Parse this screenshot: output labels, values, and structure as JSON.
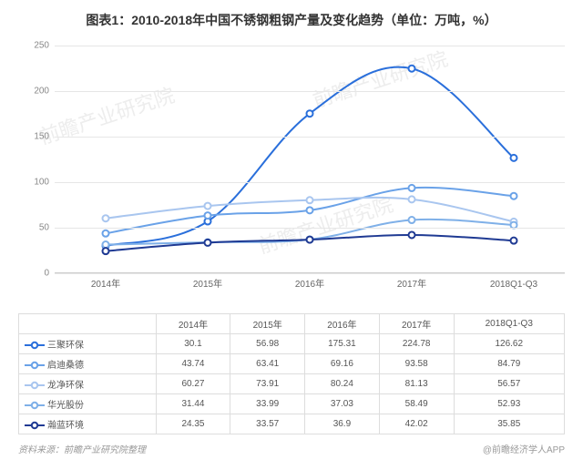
{
  "title": "图表1：2010-2018年中国不锈钢粗钢产量及变化趋势（单位：万吨，%）",
  "source_label": "资料来源：前瞻产业研究院整理",
  "footer_right": "@前瞻经济学人APP",
  "watermark_text": "前瞻产业研究院",
  "chart": {
    "type": "line",
    "background_color": "#ffffff",
    "grid_color": "#e6e6e6",
    "axis_color": "#cccccc",
    "tick_color": "#888888",
    "tick_fontsize": 10,
    "ylim": [
      0,
      250
    ],
    "ytick_step": 50,
    "yticks": [
      0,
      50,
      100,
      150,
      200,
      250
    ],
    "categories": [
      "2014年",
      "2015年",
      "2016年",
      "2017年",
      "2018Q1-Q3"
    ],
    "line_width": 2,
    "marker_style": "circle-open",
    "marker_radius": 3.5,
    "series": [
      {
        "name": "三聚环保",
        "color": "#2a6fdb",
        "values": [
          30.1,
          56.98,
          175.31,
          224.78,
          126.62
        ]
      },
      {
        "name": "启迪桑德",
        "color": "#6aa2e8",
        "values": [
          43.74,
          63.41,
          69.16,
          93.58,
          84.79
        ]
      },
      {
        "name": "龙净环保",
        "color": "#a9c6ef",
        "values": [
          60.27,
          73.91,
          80.24,
          81.13,
          56.57
        ]
      },
      {
        "name": "华光股份",
        "color": "#7fb0e8",
        "values": [
          31.44,
          33.99,
          37.03,
          58.49,
          52.93
        ]
      },
      {
        "name": "瀚蓝环境",
        "color": "#1f3a93",
        "values": [
          24.35,
          33.57,
          36.9,
          42.02,
          35.85
        ]
      }
    ]
  }
}
